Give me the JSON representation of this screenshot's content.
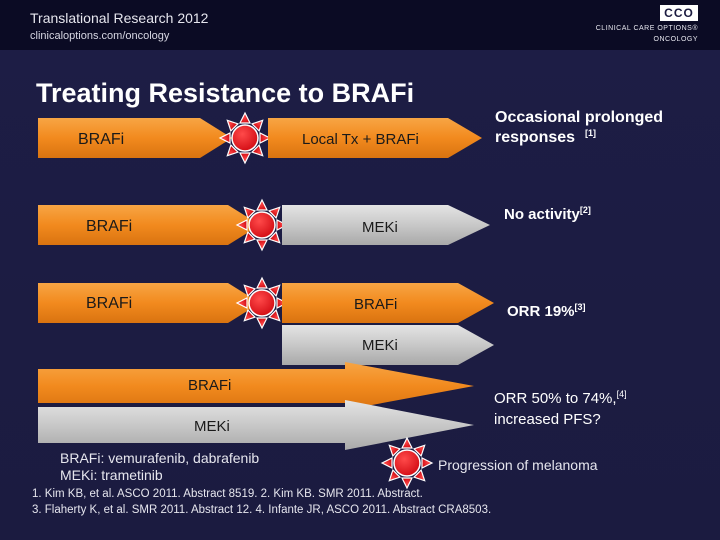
{
  "header": {
    "title": "Translational Research 2012",
    "url": "clinicaloptions.com/oncology",
    "logo_box": "CCO",
    "logo_main": "CLINICAL CARE OPTIONS®",
    "logo_sub": "ONCOLOGY"
  },
  "slide_title": "Treating Resistance to BRAFi",
  "colors": {
    "orange": "#f28a1e",
    "gray": "#c8c8c8",
    "progression": "#e8141c",
    "background": "#1b1b40"
  },
  "rows": [
    {
      "arrow1": "BRAFi",
      "arrow2": "Local Tx + BRAFi",
      "outcome": "Occasional prolonged responses",
      "ref": "[1]"
    },
    {
      "arrow1": "BRAFi",
      "arrow2": "MEKi",
      "outcome": "No activity",
      "ref": "[2]"
    },
    {
      "arrow1": "BRAFi",
      "arrow2": "BRAFi",
      "arrow3": "MEKi",
      "outcome": "ORR 19%",
      "ref": "[3]"
    },
    {
      "arrow1": "BRAFi",
      "arrow2": "MEKi",
      "outcome_line1": "ORR 50% to 74%,",
      "ref": "[4]",
      "outcome_line2": "increased PFS?"
    }
  ],
  "legend": {
    "braf_def": "BRAFi: vemurafenib, dabrafenib",
    "mek_def": "MEKi: trametinib",
    "progression": "Progression of melanoma",
    "progression_icon": "starburst-icon"
  },
  "references": {
    "line1": "1. Kim KB, et al. ASCO 2011. Abstract 8519. 2. Kim KB. SMR 2011. Abstract.",
    "line2": "3. Flaherty K, et al. SMR 2011. Abstract 12. 4. Infante JR, ASCO 2011. Abstract CRA8503."
  }
}
